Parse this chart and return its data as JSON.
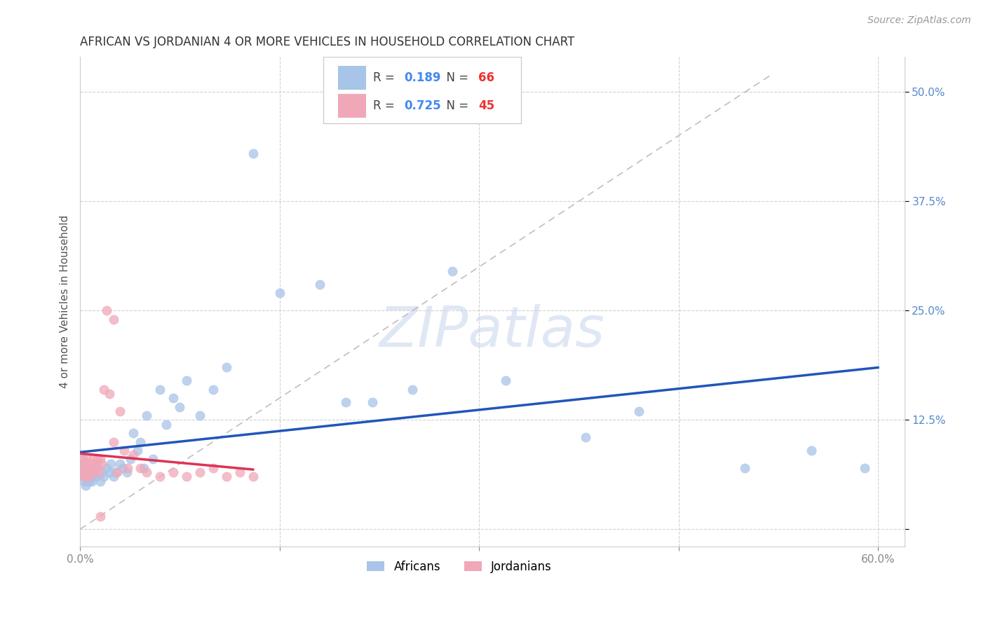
{
  "title": "AFRICAN VS JORDANIAN 4 OR MORE VEHICLES IN HOUSEHOLD CORRELATION CHART",
  "source": "Source: ZipAtlas.com",
  "ylabel": "4 or more Vehicles in Household",
  "xlim": [
    0.0,
    0.62
  ],
  "ylim": [
    -0.02,
    0.54
  ],
  "xticks": [
    0.0,
    0.6
  ],
  "xtick_labels": [
    "0.0%",
    "60.0%"
  ],
  "yticks": [
    0.0,
    0.125,
    0.25,
    0.375,
    0.5
  ],
  "ytick_labels": [
    "",
    "12.5%",
    "25.0%",
    "37.5%",
    "50.0%"
  ],
  "african_color": "#a8c4e8",
  "jordanian_color": "#f0a8b8",
  "african_line_color": "#2255bb",
  "jordanian_line_color": "#dd3355",
  "african_R": 0.189,
  "african_N": 66,
  "jordanian_R": 0.725,
  "jordanian_N": 45,
  "african_x": [
    0.001,
    0.002,
    0.002,
    0.003,
    0.003,
    0.003,
    0.004,
    0.004,
    0.004,
    0.005,
    0.005,
    0.005,
    0.006,
    0.006,
    0.006,
    0.007,
    0.007,
    0.007,
    0.008,
    0.008,
    0.009,
    0.009,
    0.01,
    0.01,
    0.011,
    0.012,
    0.013,
    0.015,
    0.016,
    0.018,
    0.02,
    0.022,
    0.023,
    0.025,
    0.027,
    0.03,
    0.032,
    0.035,
    0.038,
    0.04,
    0.043,
    0.045,
    0.048,
    0.05,
    0.055,
    0.06,
    0.065,
    0.07,
    0.075,
    0.08,
    0.09,
    0.1,
    0.11,
    0.13,
    0.15,
    0.18,
    0.2,
    0.22,
    0.25,
    0.28,
    0.32,
    0.38,
    0.42,
    0.5,
    0.55,
    0.59
  ],
  "african_y": [
    0.075,
    0.08,
    0.065,
    0.07,
    0.06,
    0.055,
    0.075,
    0.065,
    0.05,
    0.07,
    0.06,
    0.055,
    0.075,
    0.065,
    0.06,
    0.07,
    0.06,
    0.055,
    0.065,
    0.06,
    0.07,
    0.055,
    0.075,
    0.06,
    0.065,
    0.06,
    0.075,
    0.055,
    0.065,
    0.06,
    0.07,
    0.065,
    0.075,
    0.06,
    0.065,
    0.075,
    0.07,
    0.065,
    0.08,
    0.11,
    0.09,
    0.1,
    0.07,
    0.13,
    0.08,
    0.16,
    0.12,
    0.15,
    0.14,
    0.17,
    0.13,
    0.16,
    0.185,
    0.43,
    0.27,
    0.28,
    0.145,
    0.145,
    0.16,
    0.295,
    0.17,
    0.105,
    0.135,
    0.07,
    0.09,
    0.07
  ],
  "jordanian_x": [
    0.001,
    0.002,
    0.002,
    0.003,
    0.003,
    0.004,
    0.004,
    0.005,
    0.005,
    0.006,
    0.006,
    0.007,
    0.007,
    0.008,
    0.008,
    0.009,
    0.01,
    0.01,
    0.011,
    0.012,
    0.013,
    0.014,
    0.015,
    0.016,
    0.018,
    0.02,
    0.022,
    0.025,
    0.028,
    0.03,
    0.033,
    0.036,
    0.04,
    0.045,
    0.05,
    0.06,
    0.07,
    0.08,
    0.09,
    0.1,
    0.11,
    0.12,
    0.13,
    0.015,
    0.025
  ],
  "jordanian_y": [
    0.075,
    0.08,
    0.065,
    0.07,
    0.06,
    0.075,
    0.06,
    0.07,
    0.08,
    0.065,
    0.075,
    0.07,
    0.06,
    0.075,
    0.065,
    0.07,
    0.08,
    0.065,
    0.075,
    0.07,
    0.08,
    0.065,
    0.08,
    0.075,
    0.16,
    0.25,
    0.155,
    0.1,
    0.065,
    0.135,
    0.09,
    0.07,
    0.085,
    0.07,
    0.065,
    0.06,
    0.065,
    0.06,
    0.065,
    0.07,
    0.06,
    0.065,
    0.06,
    0.015,
    0.24
  ],
  "background_color": "#ffffff",
  "grid_color": "#d0d0d0",
  "watermark_color": "#ccd8ee",
  "title_fontsize": 12,
  "label_fontsize": 11,
  "tick_fontsize": 11,
  "source_fontsize": 10,
  "legend_R_color": "#4488ee",
  "legend_N_color": "#ee3333"
}
